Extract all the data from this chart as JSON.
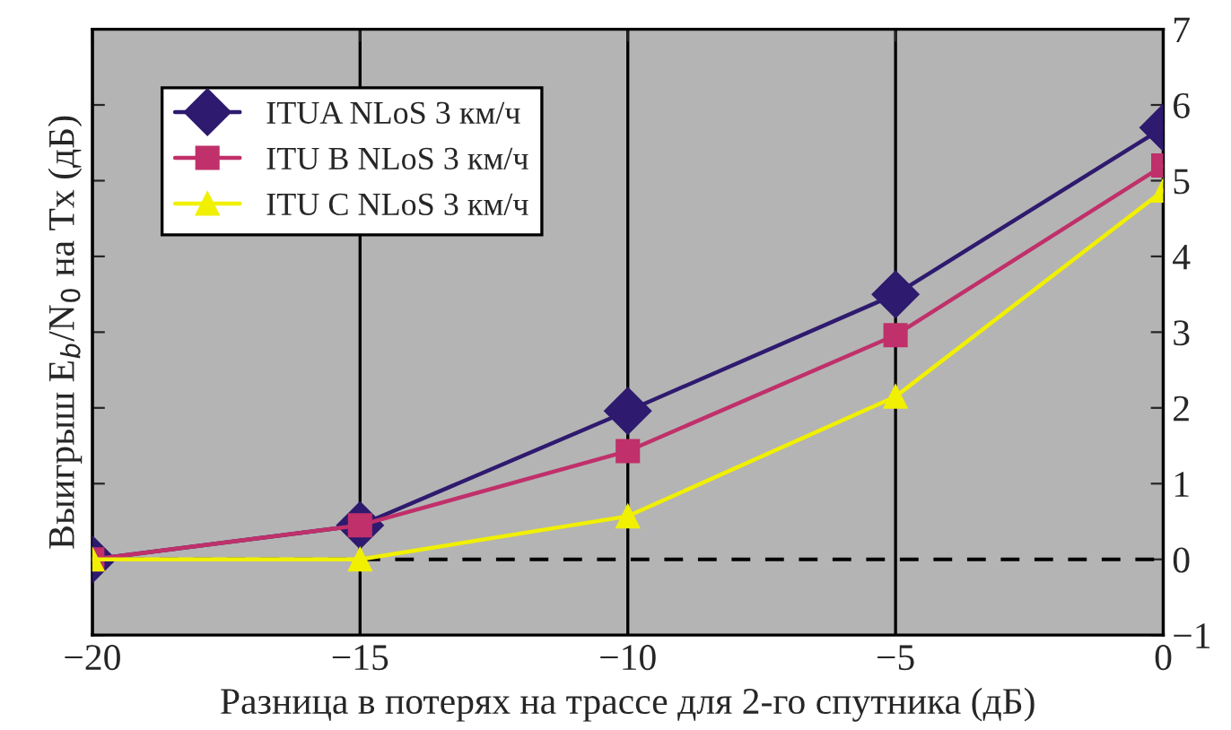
{
  "chart_data": {
    "type": "line",
    "xlabel": "Разница в потерях на трассе для 2-го спутника (дБ)",
    "ylabel": "Выигрыш E$_{b}$/N$_{0}$ на Tx (дБ)",
    "x": [
      -20,
      -15,
      -10,
      -5,
      0
    ],
    "series": [
      {
        "name": "ITUA NLoS 3 км/ч",
        "color": "#2e1a6e",
        "marker": "diamond",
        "values": [
          0,
          0.45,
          1.96,
          3.5,
          5.7
        ]
      },
      {
        "name": "ITU B NLoS 3 км/ч",
        "color": "#c0306a",
        "marker": "square",
        "values": [
          0,
          0.45,
          1.43,
          2.96,
          5.2
        ]
      },
      {
        "name": "ITU C NLoS 3 км/ч",
        "color": "#f0f000",
        "marker": "triangle",
        "values": [
          0,
          0,
          0.57,
          2.15,
          4.87
        ]
      }
    ],
    "xlim": [
      -20,
      0
    ],
    "xticks": [
      {
        "value": -20,
        "label": "−20"
      },
      {
        "value": -15,
        "label": "−15"
      },
      {
        "value": -10,
        "label": "−10"
      },
      {
        "value": -5,
        "label": "−5"
      },
      0
    ],
    "ylim": [
      -1,
      7
    ],
    "yticks": [
      {
        "value": -1,
        "label": "−1"
      },
      0,
      1,
      2,
      3,
      4,
      5,
      6,
      7
    ],
    "ref_lines": [
      {
        "axis": "y",
        "value": 0,
        "color": "#000000",
        "line_style": "dashed"
      }
    ],
    "grid": "x",
    "legend": "top left"
  }
}
